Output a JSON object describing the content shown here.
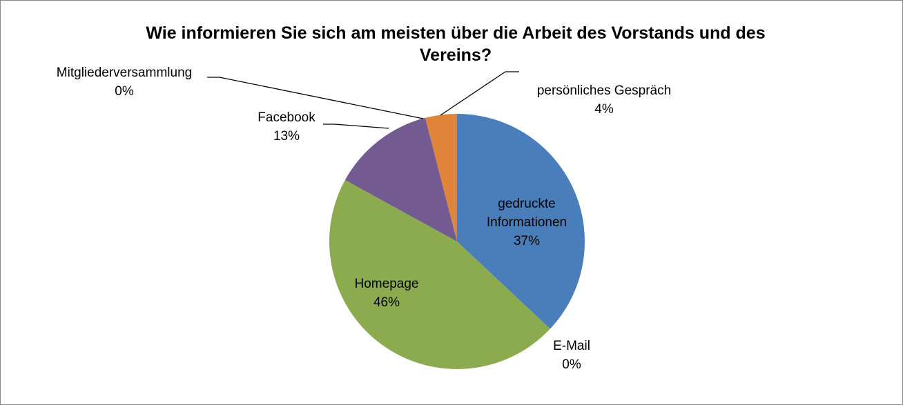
{
  "chart_data": {
    "type": "pie",
    "title": "Wie informieren Sie sich am meisten über die Arbeit des Vorstands und des Vereins?",
    "categories": [
      "gedruckte Informationen",
      "E-Mail",
      "Homepage",
      "Facebook",
      "Mitgliederversammlung",
      "persönliches Gespräch"
    ],
    "values": [
      37,
      0,
      46,
      13,
      0,
      4
    ],
    "value_labels": [
      "37%",
      "0%",
      "46%",
      "13%",
      "0%",
      "4%"
    ],
    "colors": [
      "#4a7ebb",
      "#be4b48",
      "#8cab4e",
      "#735a91",
      "#46a5c1",
      "#e0843a"
    ]
  }
}
